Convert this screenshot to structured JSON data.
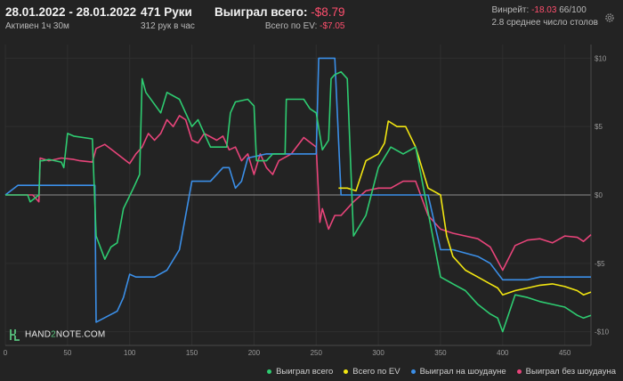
{
  "header": {
    "date_range": "28.01.2022 - 28.01.2022",
    "active": "Активен 1ч 30м",
    "hands": "471 Руки",
    "hands_per_hour": "312 рук в час",
    "won_total_label": "Выиграл всего:",
    "won_total_value": "-$8.79",
    "ev_total_label": "Всего по EV:",
    "ev_total_value": "-$7.05",
    "winrate_label": "Винрейт:",
    "winrate_value": "-18.03",
    "winrate_unit": "66/100",
    "avg_tables": "2.8 среднее число столов"
  },
  "logo": {
    "prefix": "HAND",
    "mid": "2",
    "suffix": "NOTE.COM"
  },
  "colors": {
    "background": "#232323",
    "won_total": "#2ecc71",
    "ev": "#f2e611",
    "showdown": "#3b8fe8",
    "non_showdown": "#e8447a",
    "negative_text": "#ff4f6e"
  },
  "chart_data": {
    "type": "line",
    "title": "",
    "xlabel": "",
    "ylabel": "",
    "xlim": [
      0,
      471
    ],
    "ylim": [
      -11,
      11
    ],
    "x_ticks": [
      0,
      50,
      100,
      150,
      200,
      250,
      300,
      350,
      400,
      450
    ],
    "y_ticks": [
      {
        "value": 10,
        "label": "$10"
      },
      {
        "value": 5,
        "label": "$5"
      },
      {
        "value": 0,
        "label": "$0"
      },
      {
        "value": -5,
        "label": "-$5"
      },
      {
        "value": -10,
        "label": "-$10"
      }
    ],
    "grid": true,
    "legend_position": "bottom-right",
    "series": [
      {
        "name": "Выиграл всего",
        "color": "#2ecc71",
        "x": [
          0,
          10,
          18,
          20,
          27,
          28,
          30,
          35,
          45,
          47,
          50,
          55,
          70,
          73,
          80,
          85,
          90,
          95,
          103,
          108,
          110,
          113,
          125,
          130,
          140,
          150,
          155,
          160,
          165,
          170,
          178,
          181,
          185,
          195,
          200,
          202,
          210,
          215,
          225,
          226,
          240,
          245,
          250,
          255,
          260,
          262,
          265,
          270,
          275,
          280,
          290,
          300,
          310,
          320,
          330,
          350,
          360,
          370,
          380,
          390,
          396,
          400,
          410,
          420,
          430,
          440,
          450,
          460,
          465,
          471
        ],
        "y": [
          0,
          0,
          0,
          -0.5,
          0,
          2.5,
          2.5,
          2.6,
          2.4,
          2,
          4.5,
          4.3,
          4.1,
          -3,
          -4.7,
          -3.8,
          -3.5,
          -1,
          0.5,
          1.5,
          8.5,
          7.5,
          6,
          7.5,
          7,
          5,
          5.5,
          4.5,
          3.5,
          3.5,
          3.5,
          6,
          6.8,
          7,
          6.5,
          2.5,
          2.5,
          3,
          3,
          7,
          7,
          6.3,
          6,
          3.3,
          4,
          8.5,
          8.8,
          9,
          8.5,
          -3,
          -1.5,
          2,
          3.5,
          3,
          3.5,
          -6,
          -6.5,
          -7,
          -8,
          -8.7,
          -9,
          -10,
          -7.3,
          -7.5,
          -7.8,
          -8,
          -8.2,
          -8.8,
          -9,
          -8.8
        ]
      },
      {
        "name": "Всего по EV",
        "color": "#f2e611",
        "x": [
          268,
          275,
          282,
          290,
          300,
          305,
          308,
          315,
          322,
          330,
          340,
          350,
          355,
          360,
          370,
          380,
          390,
          396,
          400,
          410,
          420,
          430,
          440,
          450,
          460,
          465,
          471
        ],
        "y": [
          0.5,
          0.5,
          0.3,
          2.5,
          3,
          3.8,
          5.4,
          5,
          5,
          3.5,
          0.5,
          0,
          -3,
          -4.5,
          -5.5,
          -6,
          -6.5,
          -6.8,
          -7.3,
          -7,
          -6.8,
          -6.6,
          -6.5,
          -6.7,
          -7,
          -7.3,
          -7.1
        ]
      },
      {
        "name": "Выиграл на шоудауне",
        "color": "#3b8fe8",
        "x": [
          0,
          10,
          20,
          28,
          30,
          40,
          50,
          60,
          70,
          72,
          73,
          90,
          95,
          100,
          105,
          110,
          120,
          130,
          140,
          150,
          160,
          165,
          175,
          180,
          185,
          190,
          195,
          210,
          225,
          240,
          250,
          252,
          255,
          265,
          270,
          300,
          305,
          310,
          320,
          330,
          340,
          350,
          360,
          380,
          390,
          400,
          410,
          420,
          430,
          440,
          450,
          460,
          471
        ],
        "y": [
          0,
          0.7,
          0.7,
          0.7,
          0.7,
          0.7,
          0.7,
          0.7,
          0.7,
          0.7,
          -9.3,
          -8.5,
          -7.5,
          -5.8,
          -6,
          -6,
          -6,
          -5.5,
          -4,
          1,
          1,
          1,
          2,
          2,
          0.5,
          1,
          2.7,
          3,
          3,
          3,
          3,
          10,
          10,
          10,
          0,
          0,
          0,
          0,
          0,
          0,
          0,
          -4,
          -4,
          -4.5,
          -5,
          -6.2,
          -6.2,
          -6.2,
          -6,
          -6,
          -6,
          -6,
          -6
        ]
      },
      {
        "name": "Выиграл без шоудауна",
        "color": "#e8447a",
        "x": [
          0,
          18,
          22,
          27,
          28,
          35,
          45,
          55,
          60,
          70,
          73,
          80,
          90,
          100,
          105,
          110,
          115,
          120,
          125,
          130,
          135,
          140,
          145,
          150,
          155,
          160,
          170,
          175,
          180,
          185,
          190,
          195,
          200,
          205,
          210,
          215,
          220,
          230,
          240,
          250,
          253,
          255,
          260,
          265,
          270,
          280,
          290,
          300,
          310,
          320,
          325,
          330,
          340,
          350,
          360,
          370,
          380,
          390,
          400,
          410,
          420,
          430,
          440,
          450,
          460,
          465,
          471
        ],
        "y": [
          0,
          0,
          0,
          -0.5,
          2.7,
          2.5,
          2.7,
          2.6,
          2.5,
          2.4,
          3.4,
          3.7,
          3,
          2.3,
          3,
          3.5,
          4.5,
          4,
          4.5,
          5.5,
          5,
          5.8,
          5.5,
          4,
          3.8,
          4.5,
          4,
          4.3,
          3.3,
          3.5,
          2.5,
          3,
          1.5,
          3,
          2,
          1.5,
          2.5,
          3,
          4.2,
          3.5,
          -2,
          -1,
          -2.5,
          -1.5,
          -1.5,
          -0.5,
          0.3,
          0.5,
          0.5,
          1,
          1,
          1,
          -1.5,
          -2.5,
          -2.8,
          -3,
          -3.2,
          -3.8,
          -5.5,
          -3.7,
          -3.3,
          -3.2,
          -3.5,
          -3,
          -3.1,
          -3.4,
          -2.9
        ]
      }
    ]
  }
}
